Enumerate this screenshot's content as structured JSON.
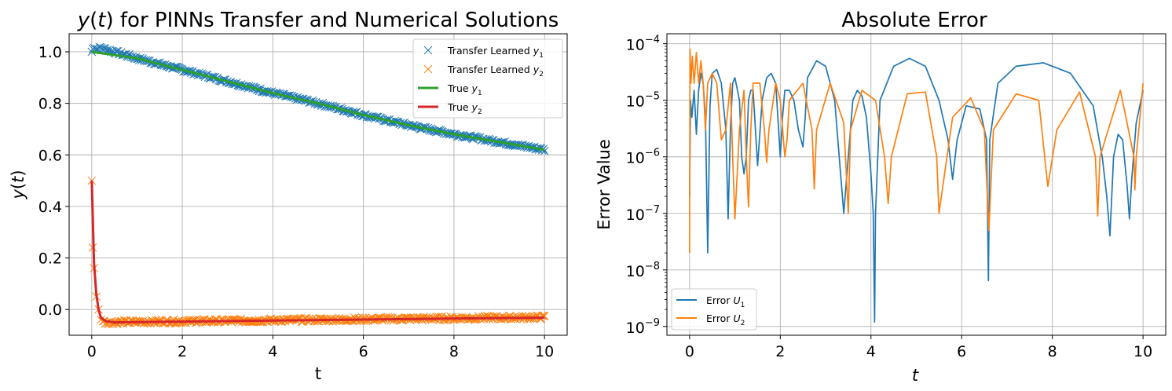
{
  "chart_data": [
    {
      "type": "line",
      "title": "y(t) for PINNs Transfer and Numerical Solutions",
      "xlabel": "t",
      "ylabel": "y(t)",
      "xlim": [
        -0.5,
        10.5
      ],
      "ylim": [
        -0.1,
        1.07
      ],
      "xticks": [
        "0",
        "2",
        "4",
        "6",
        "8",
        "10"
      ],
      "yticks": [
        "0.0",
        "0.2",
        "0.4",
        "0.6",
        "0.8",
        "1.0"
      ],
      "grid": true,
      "legend_position": "upper right",
      "series": [
        {
          "name": "Transfer Learned y1",
          "style": "x-markers",
          "color": "#1f77b4",
          "x": [
            0,
            0.05,
            0.1,
            0.2,
            0.5,
            1,
            2,
            3,
            4,
            5,
            6,
            7,
            8,
            9,
            10
          ],
          "y": [
            1.0,
            1.02,
            1.01,
            1.015,
            1.0,
            0.975,
            0.93,
            0.885,
            0.84,
            0.8,
            0.755,
            0.715,
            0.68,
            0.65,
            0.62
          ]
        },
        {
          "name": "Transfer Learned y2",
          "style": "x-markers",
          "color": "#ff7f0e",
          "x": [
            0,
            0.02,
            0.05,
            0.1,
            0.15,
            0.2,
            0.3,
            0.5,
            1,
            2,
            4,
            6,
            8,
            10
          ],
          "y": [
            0.5,
            0.24,
            0.16,
            0.05,
            0.0,
            -0.04,
            -0.05,
            -0.05,
            -0.048,
            -0.046,
            -0.042,
            -0.038,
            -0.034,
            -0.03
          ]
        },
        {
          "name": "True y1",
          "style": "line",
          "color": "#2ca02c",
          "x": [
            0,
            1,
            2,
            3,
            4,
            5,
            6,
            7,
            8,
            9,
            10
          ],
          "y": [
            1.0,
            0.975,
            0.93,
            0.885,
            0.84,
            0.8,
            0.755,
            0.715,
            0.68,
            0.65,
            0.62
          ]
        },
        {
          "name": "True y2",
          "style": "line",
          "color": "#d62728",
          "x": [
            0,
            0.05,
            0.1,
            0.15,
            0.2,
            0.3,
            0.5,
            1,
            2,
            4,
            6,
            8,
            10
          ],
          "y": [
            0.5,
            0.18,
            0.06,
            0.0,
            -0.03,
            -0.045,
            -0.05,
            -0.049,
            -0.047,
            -0.043,
            -0.039,
            -0.035,
            -0.032
          ]
        }
      ]
    },
    {
      "type": "line",
      "title": "Absolute Error",
      "xlabel": "t",
      "ylabel": "Error Value",
      "xscale": "linear",
      "yscale": "log",
      "xlim": [
        -0.5,
        10.5
      ],
      "ylim": [
        7e-10,
        0.00015
      ],
      "xticks": [
        "0",
        "2",
        "4",
        "6",
        "8",
        "10"
      ],
      "yticks": [
        "10^-9",
        "10^-8",
        "10^-7",
        "10^-6",
        "10^-5",
        "10^-4"
      ],
      "grid": true,
      "legend_position": "lower left",
      "series": [
        {
          "name": "Error U1",
          "color": "#1f77b4",
          "x": [
            0,
            0.02,
            0.05,
            0.1,
            0.15,
            0.2,
            0.25,
            0.3,
            0.35,
            0.4,
            0.45,
            0.5,
            0.6,
            0.7,
            0.8,
            0.85,
            0.9,
            0.95,
            1.0,
            1.1,
            1.15,
            1.2,
            1.25,
            1.3,
            1.35,
            1.4,
            1.5,
            1.6,
            1.7,
            1.8,
            1.9,
            2.0,
            2.05,
            2.1,
            2.2,
            2.3,
            2.4,
            2.5,
            2.55,
            2.6,
            2.8,
            3.0,
            3.2,
            3.4,
            3.6,
            3.7,
            3.8,
            3.9,
            4.0,
            4.05,
            4.08,
            4.1,
            4.2,
            4.5,
            4.85,
            5.2,
            5.5,
            5.7,
            5.8,
            5.9,
            6.1,
            6.4,
            6.55,
            6.59,
            6.62,
            6.8,
            7.2,
            7.8,
            8.4,
            8.9,
            9.1,
            9.2,
            9.27,
            9.35,
            9.45,
            9.55,
            9.65,
            9.7,
            9.75,
            9.85,
            10.0
          ],
          "y": [
            2e-07,
            1e-05,
            5e-06,
            1.5e-05,
            2.5e-06,
            1.5e-05,
            3e-05,
            2e-05,
            5e-06,
            2e-08,
            8e-06,
            3e-05,
            3.5e-05,
            2e-05,
            3e-06,
            8e-08,
            3e-06,
            2e-05,
            2.5e-05,
            1e-05,
            1e-06,
            5e-07,
            1e-06,
            1e-05,
            1.5e-05,
            1.5e-05,
            7e-07,
            1e-05,
            2.5e-05,
            3e-05,
            2e-05,
            1e-06,
            5e-06,
            1.5e-05,
            1.5e-05,
            1e-05,
            3e-06,
            1.5e-06,
            5e-06,
            2.5e-05,
            5e-05,
            4e-05,
            1e-05,
            1e-07,
            1e-05,
            1.5e-05,
            1.2e-05,
            5e-06,
            5e-07,
            1e-07,
            1.2e-09,
            1e-07,
            1e-05,
            4e-05,
            5.5e-05,
            4e-05,
            1e-05,
            2e-06,
            4e-07,
            2e-06,
            8e-06,
            7e-06,
            2e-06,
            6.5e-09,
            2e-06,
            2e-05,
            4e-05,
            4.6e-05,
            3e-05,
            8e-06,
            1e-06,
            2e-07,
            4e-08,
            1e-06,
            2.5e-06,
            2e-06,
            3e-07,
            8e-08,
            4e-07,
            4e-06,
            1.5e-05
          ]
        },
        {
          "name": "Error U2",
          "color": "#ff7f0e",
          "x": [
            0,
            0.01,
            0.03,
            0.06,
            0.1,
            0.15,
            0.2,
            0.25,
            0.3,
            0.35,
            0.4,
            0.5,
            0.6,
            0.7,
            0.8,
            0.9,
            0.95,
            1.0,
            1.1,
            1.2,
            1.25,
            1.3,
            1.35,
            1.4,
            1.55,
            1.65,
            1.7,
            1.75,
            1.9,
            2.0,
            2.1,
            2.15,
            2.2,
            2.5,
            2.7,
            2.75,
            2.8,
            3.1,
            3.4,
            3.5,
            3.55,
            3.8,
            4.1,
            4.3,
            4.38,
            4.45,
            4.8,
            5.2,
            5.45,
            5.5,
            5.8,
            6.2,
            6.5,
            6.6,
            6.7,
            7.2,
            7.7,
            7.9,
            8.1,
            8.6,
            8.95,
            9.0,
            9.05,
            9.5,
            9.8,
            9.82,
            9.85,
            10.0
          ],
          "y": [
            2e-08,
            8e-05,
            2e-05,
            6e-05,
            2e-05,
            7e-05,
            2e-05,
            5e-05,
            2e-05,
            3e-06,
            2e-05,
            3e-05,
            2e-05,
            2e-06,
            3e-06,
            2e-05,
            1e-06,
            8e-08,
            3e-06,
            1.5e-05,
            1e-06,
            1.3e-07,
            3e-06,
            2e-05,
            2e-05,
            3e-06,
            8e-07,
            3e-06,
            2e-05,
            1e-05,
            1e-06,
            2e-06,
            1e-05,
            2e-05,
            3e-06,
            2.7e-07,
            3e-06,
            2e-05,
            4e-06,
            1e-07,
            3e-06,
            1.5e-05,
            1e-05,
            1e-06,
            1.5e-07,
            1e-06,
            1.3e-05,
            1.4e-05,
            1e-06,
            1e-07,
            5e-06,
            1.1e-05,
            3e-06,
            5e-08,
            3e-06,
            1.3e-05,
            1e-05,
            3e-07,
            3e-06,
            1.4e-05,
            1e-06,
            9e-08,
            1e-06,
            1.5e-05,
            1e-06,
            2.6e-07,
            1e-06,
            2e-05
          ]
        }
      ]
    }
  ]
}
